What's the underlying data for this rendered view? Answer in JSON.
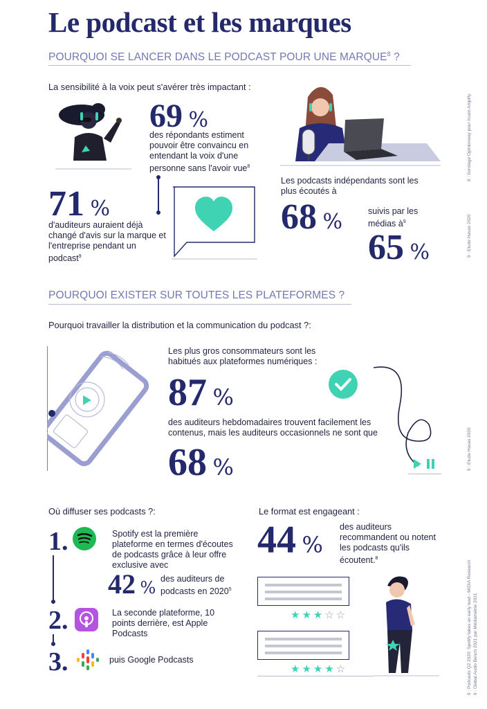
{
  "title": "Le podcast et les marques",
  "section1": {
    "heading": "POURQUOI SE LANCER DANS LE PODCAST POUR UNE MARQUE",
    "heading_sup": "8",
    "heading_suffix": " ?",
    "lead": "La sensibilité à la voix peut s'avérer très impactant :",
    "stat1": {
      "value": "69",
      "unit": "%",
      "text": "des répondants estiment pouvoir être convaincu en entendant la voix d'une personne sans l'avoir vue",
      "sup": "8"
    },
    "stat2": {
      "value": "71",
      "unit": "%",
      "text": "d'auditeurs auraient déjà changé d'avis sur la marque et l'entreprise pendant un podcast",
      "sup": "9"
    },
    "stat3": {
      "text": "Les podcasts indépendants sont les plus écoutés à",
      "value": "68",
      "unit": "%"
    },
    "stat4": {
      "text": "suivis par les médias à",
      "sup": "9",
      "value": "65",
      "unit": "%"
    }
  },
  "section2": {
    "heading": "POURQUOI EXISTER SUR TOUTES LES PLATEFORMES ?",
    "lead": "Pourquoi travailler la distribution et la communication du podcast ?:",
    "intro": "Les plus gros consommateurs sont les habitués aux plateformes numériques :",
    "stat1": {
      "value": "87",
      "unit": "%"
    },
    "text": "des auditeurs hebdomadaires trouvent facilement les contenus, mais les auditeurs occasionnels ne sont que",
    "stat2": {
      "value": "68",
      "unit": "%"
    }
  },
  "section3": {
    "lead": "Où diffuser ses podcasts ?:",
    "items": [
      {
        "rank": "1.",
        "text": "Spotify est la première plateforme en termes d'écoutes de podcasts grâce à leur offre exclusive avec",
        "icon": "spotify-icon"
      },
      {
        "rank": "2.",
        "text": "La seconde plateforme, 10 points derrière, est Apple Podcasts",
        "icon": "apple-podcasts-icon"
      },
      {
        "rank": "3.",
        "text": "puis Google Podcasts",
        "icon": "google-podcasts-icon"
      }
    ],
    "spotify_stat": {
      "value": "42",
      "unit": "%",
      "text": "des auditeurs de podcasts en 2020",
      "sup": "5"
    }
  },
  "section4": {
    "lead": "Le format est engageant :",
    "stat": {
      "value": "44",
      "unit": "%",
      "text": "des auditeurs recommandent ou notent les podcasts qu'ils écoutent.",
      "sup": "8"
    },
    "ratings": [
      3,
      4
    ]
  },
  "side_notes": {
    "n1": "8 : Sondage Opinionway pour Ircam Amplify",
    "n2": "9 : Etude Havas 2020",
    "n3": "9 : Etude Havas 2020",
    "n4": "9 : Podcasts Q2 2020: Spotify takes an early lead - MIDIA Research",
    "n5": "9 : Global Audio Bench 2021 par Médiamétrie 2021"
  },
  "colors": {
    "navy": "#23296b",
    "teal": "#3fd3b4",
    "lavender": "#7378b4"
  }
}
